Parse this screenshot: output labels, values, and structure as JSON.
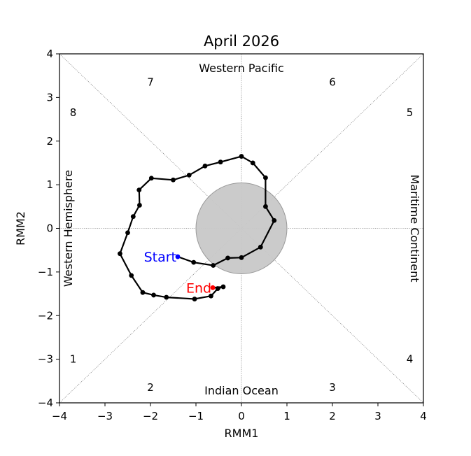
{
  "chart_data": {
    "type": "line",
    "title": "April 2026",
    "xlabel": "RMM1",
    "ylabel": "RMM2",
    "xlim": [
      -4,
      4
    ],
    "ylim": [
      -4,
      4
    ],
    "x_ticks": [
      "−4",
      "−3",
      "−2",
      "−1",
      "0",
      "1",
      "2",
      "3",
      "4"
    ],
    "y_ticks": [
      "−4",
      "−3",
      "−2",
      "−1",
      "0",
      "1",
      "2",
      "3",
      "4"
    ],
    "regions": {
      "top": "Western Pacific",
      "bottom": "Indian Ocean",
      "left": "Western Hemisphere",
      "right": "Maritime Continent"
    },
    "phases": [
      "1",
      "2",
      "3",
      "4",
      "5",
      "6",
      "7",
      "8"
    ],
    "start_label": "Start",
    "end_label": "End",
    "colors": {
      "line": "#000000",
      "start": "#0000ff",
      "end": "#ff0000",
      "circle": "#c8c8c8"
    },
    "inner_circle_radius": 1,
    "trajectory": [
      [
        -1.4,
        -0.65
      ],
      [
        -1.05,
        -0.78
      ],
      [
        -0.62,
        -0.85
      ],
      [
        -0.3,
        -0.68
      ],
      [
        0.0,
        -0.67
      ],
      [
        0.42,
        -0.43
      ],
      [
        0.72,
        0.18
      ],
      [
        0.53,
        0.5
      ],
      [
        0.53,
        1.16
      ],
      [
        0.25,
        1.5
      ],
      [
        0.0,
        1.65
      ],
      [
        -0.46,
        1.52
      ],
      [
        -0.8,
        1.43
      ],
      [
        -1.15,
        1.22
      ],
      [
        -1.5,
        1.11
      ],
      [
        -1.98,
        1.15
      ],
      [
        -2.25,
        0.88
      ],
      [
        -2.24,
        0.53
      ],
      [
        -2.38,
        0.27
      ],
      [
        -2.5,
        -0.1
      ],
      [
        -2.67,
        -0.58
      ],
      [
        -2.42,
        -1.08
      ],
      [
        -2.17,
        -1.47
      ],
      [
        -1.93,
        -1.53
      ],
      [
        -1.65,
        -1.58
      ],
      [
        -1.03,
        -1.62
      ],
      [
        -0.67,
        -1.55
      ],
      [
        -0.52,
        -1.38
      ],
      [
        -0.4,
        -1.34
      ],
      [
        -0.63,
        -1.36
      ]
    ]
  }
}
